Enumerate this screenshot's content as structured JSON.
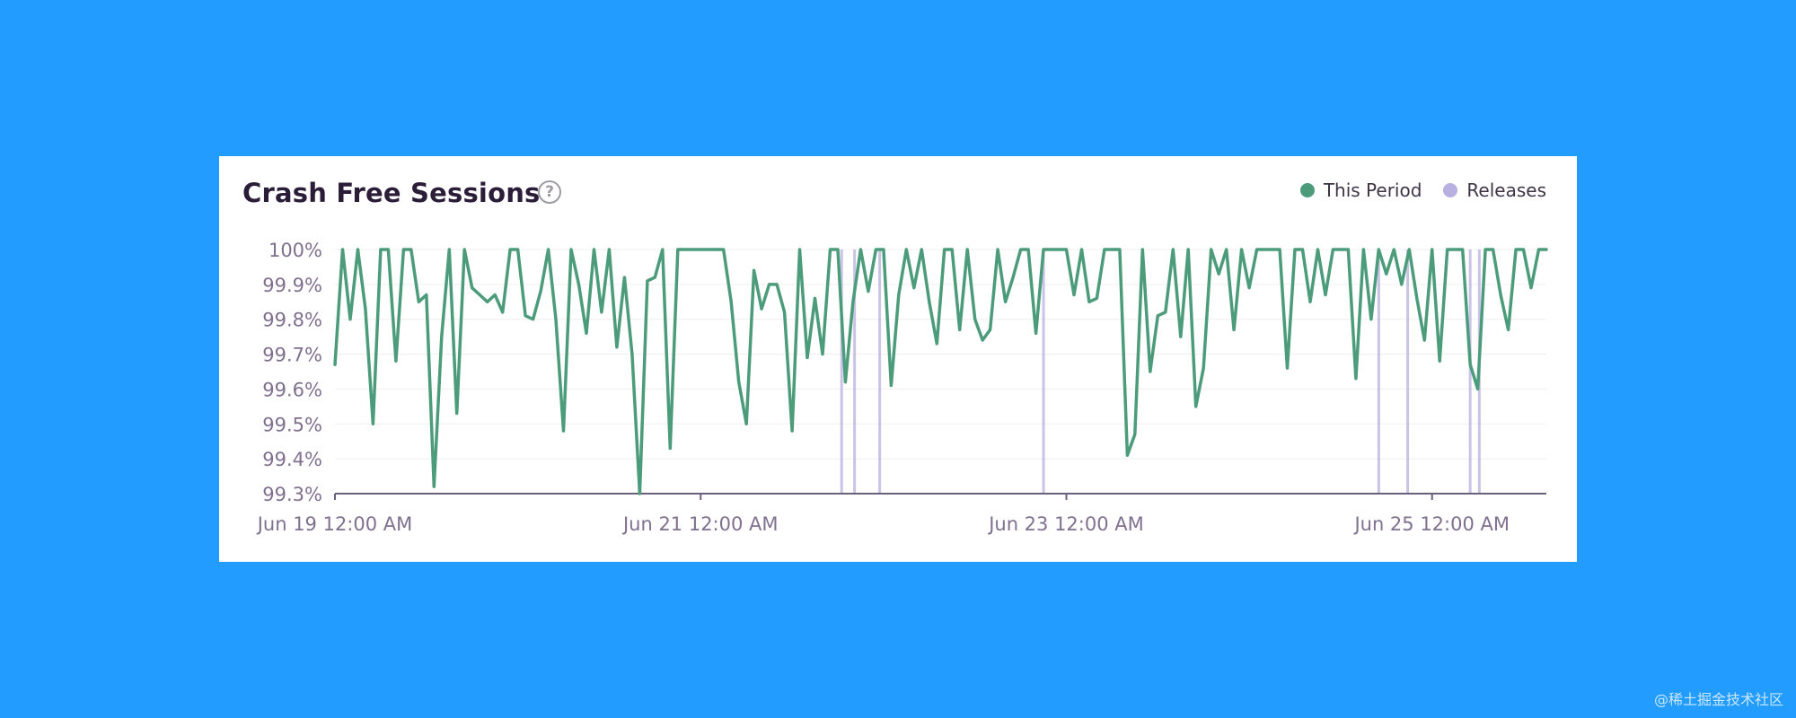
{
  "card": {
    "title": "Crash Free Sessions",
    "help_icon": "question-circle-icon"
  },
  "legend": {
    "this_period": {
      "label": "This Period",
      "color": "#4c9c7c"
    },
    "releases": {
      "label": "Releases",
      "color": "#b8b0e0"
    }
  },
  "watermark": "@稀土掘金技术社区",
  "chart_data": {
    "type": "line",
    "title": "Crash Free Sessions",
    "xlabel": "",
    "ylabel": "",
    "ylim": [
      99.3,
      100
    ],
    "yticks": [
      "100%",
      "99.9%",
      "99.8%",
      "99.7%",
      "99.6%",
      "99.5%",
      "99.4%",
      "99.3%"
    ],
    "ytick_values": [
      100,
      99.9,
      99.8,
      99.7,
      99.6,
      99.5,
      99.4,
      99.3
    ],
    "xlim_hours": [
      0,
      159
    ],
    "xticks": [
      "Jun 19 12:00 AM",
      "Jun 21 12:00 AM",
      "Jun 23 12:00 AM",
      "Jun 25 12:00 AM"
    ],
    "xtick_hours": [
      0,
      48,
      96,
      144
    ],
    "grid": "horizontal",
    "legend_position": "top-right",
    "series": [
      {
        "name": "This Period",
        "color": "#4c9c7c",
        "x_hours": [
          0,
          1,
          2,
          3,
          4,
          5,
          6,
          7,
          8,
          9,
          10,
          11,
          12,
          13,
          14,
          15,
          16,
          17,
          18,
          19,
          20,
          21,
          22,
          23,
          24,
          25,
          26,
          27,
          28,
          29,
          30,
          31,
          32,
          33,
          34,
          35,
          36,
          37,
          38,
          39,
          40,
          41,
          42,
          43,
          44,
          45,
          46,
          47,
          48,
          49,
          50,
          51,
          52,
          53,
          54,
          55,
          56,
          57,
          58,
          59,
          60,
          61,
          62,
          63,
          64,
          65,
          66,
          67,
          68,
          69,
          70,
          71,
          72,
          73,
          74,
          75,
          76,
          77,
          78,
          79,
          80,
          81,
          82,
          83,
          84,
          85,
          86,
          87,
          88,
          89,
          90,
          91,
          92,
          93,
          94,
          95,
          96,
          97,
          98,
          99,
          100,
          101,
          102,
          103,
          104,
          105,
          106,
          107,
          108,
          109,
          110,
          111,
          112,
          113,
          114,
          115,
          116,
          117,
          118,
          119,
          120,
          121,
          122,
          123,
          124,
          125,
          126,
          127,
          128,
          129,
          130,
          131,
          132,
          133,
          134,
          135,
          136,
          137,
          138,
          139,
          140,
          141,
          142,
          143,
          144,
          145,
          146,
          147,
          148,
          149,
          150,
          151,
          152,
          153,
          154,
          155,
          156,
          157,
          158,
          159
        ],
        "values": [
          99.67,
          100,
          99.8,
          100,
          99.83,
          99.5,
          100,
          100,
          99.68,
          100,
          100,
          99.85,
          99.87,
          99.32,
          99.75,
          100,
          99.53,
          100,
          99.89,
          99.87,
          99.85,
          99.87,
          99.82,
          100,
          100,
          99.81,
          99.8,
          99.88,
          100,
          99.8,
          99.48,
          100,
          99.9,
          99.76,
          100,
          99.82,
          100,
          99.72,
          99.92,
          99.7,
          99.3,
          99.91,
          99.92,
          100,
          99.43,
          100,
          100,
          100,
          100,
          100,
          100,
          100,
          99.85,
          99.62,
          99.5,
          99.94,
          99.83,
          99.9,
          99.9,
          99.82,
          99.48,
          100,
          99.69,
          99.86,
          99.7,
          100,
          100,
          99.62,
          99.85,
          100,
          99.88,
          100,
          100,
          99.61,
          99.87,
          100,
          99.89,
          100,
          99.85,
          99.73,
          100,
          100,
          99.77,
          100,
          99.8,
          99.74,
          99.77,
          100,
          99.85,
          99.92,
          100,
          100,
          99.76,
          100,
          100,
          100,
          100,
          99.87,
          100,
          99.85,
          99.86,
          100,
          100,
          100,
          99.41,
          99.47,
          100,
          99.65,
          99.81,
          99.82,
          100,
          99.75,
          100,
          99.55,
          99.66,
          100,
          99.93,
          100,
          99.77,
          100,
          99.89,
          100,
          100,
          100,
          100,
          99.66,
          100,
          100,
          99.85,
          100,
          99.87,
          100,
          100,
          100,
          99.63,
          100,
          99.8,
          100,
          99.93,
          100,
          99.9,
          100,
          99.86,
          99.74,
          100,
          99.68,
          100,
          100,
          100,
          99.67,
          99.6,
          100,
          100,
          99.87,
          99.77,
          100,
          100,
          99.89,
          100,
          100
        ]
      }
    ],
    "releases_hours": [
      66.5,
      68.2,
      71.5,
      93.0,
      137.0,
      140.8,
      149.0,
      150.2
    ]
  }
}
